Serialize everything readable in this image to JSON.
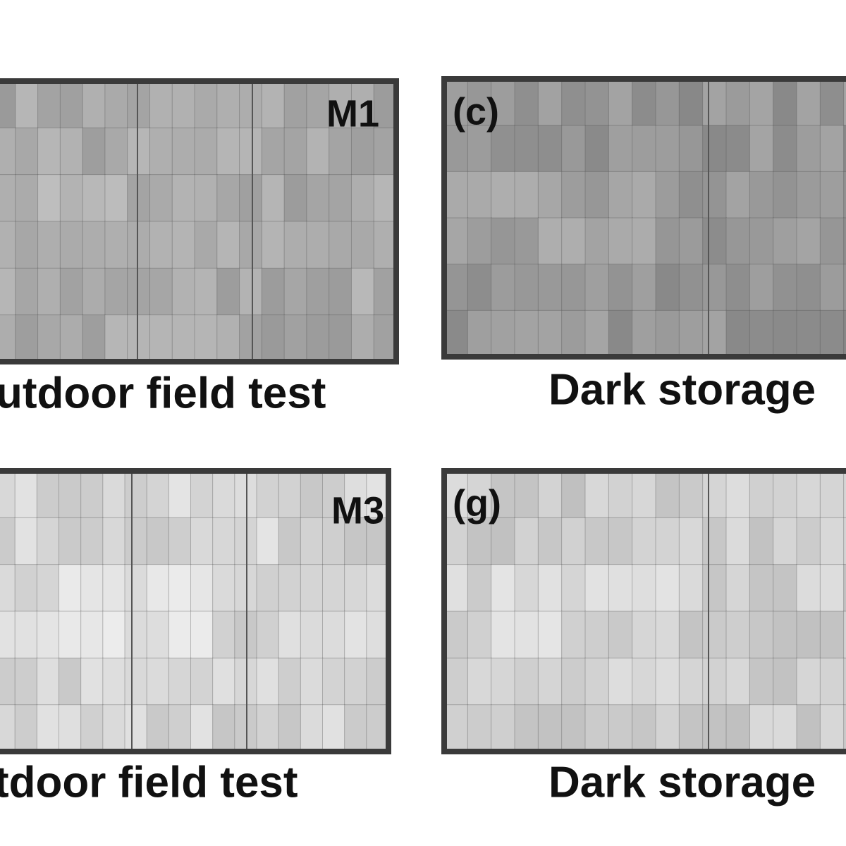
{
  "panels": [
    {
      "label": "M1",
      "caption": "utdoor field test"
    },
    {
      "label": "(c)",
      "caption": "Dark storage"
    },
    {
      "label": "M3",
      "caption": "tdoor field test"
    },
    {
      "label": "(g)",
      "caption": "Dark storage"
    }
  ]
}
